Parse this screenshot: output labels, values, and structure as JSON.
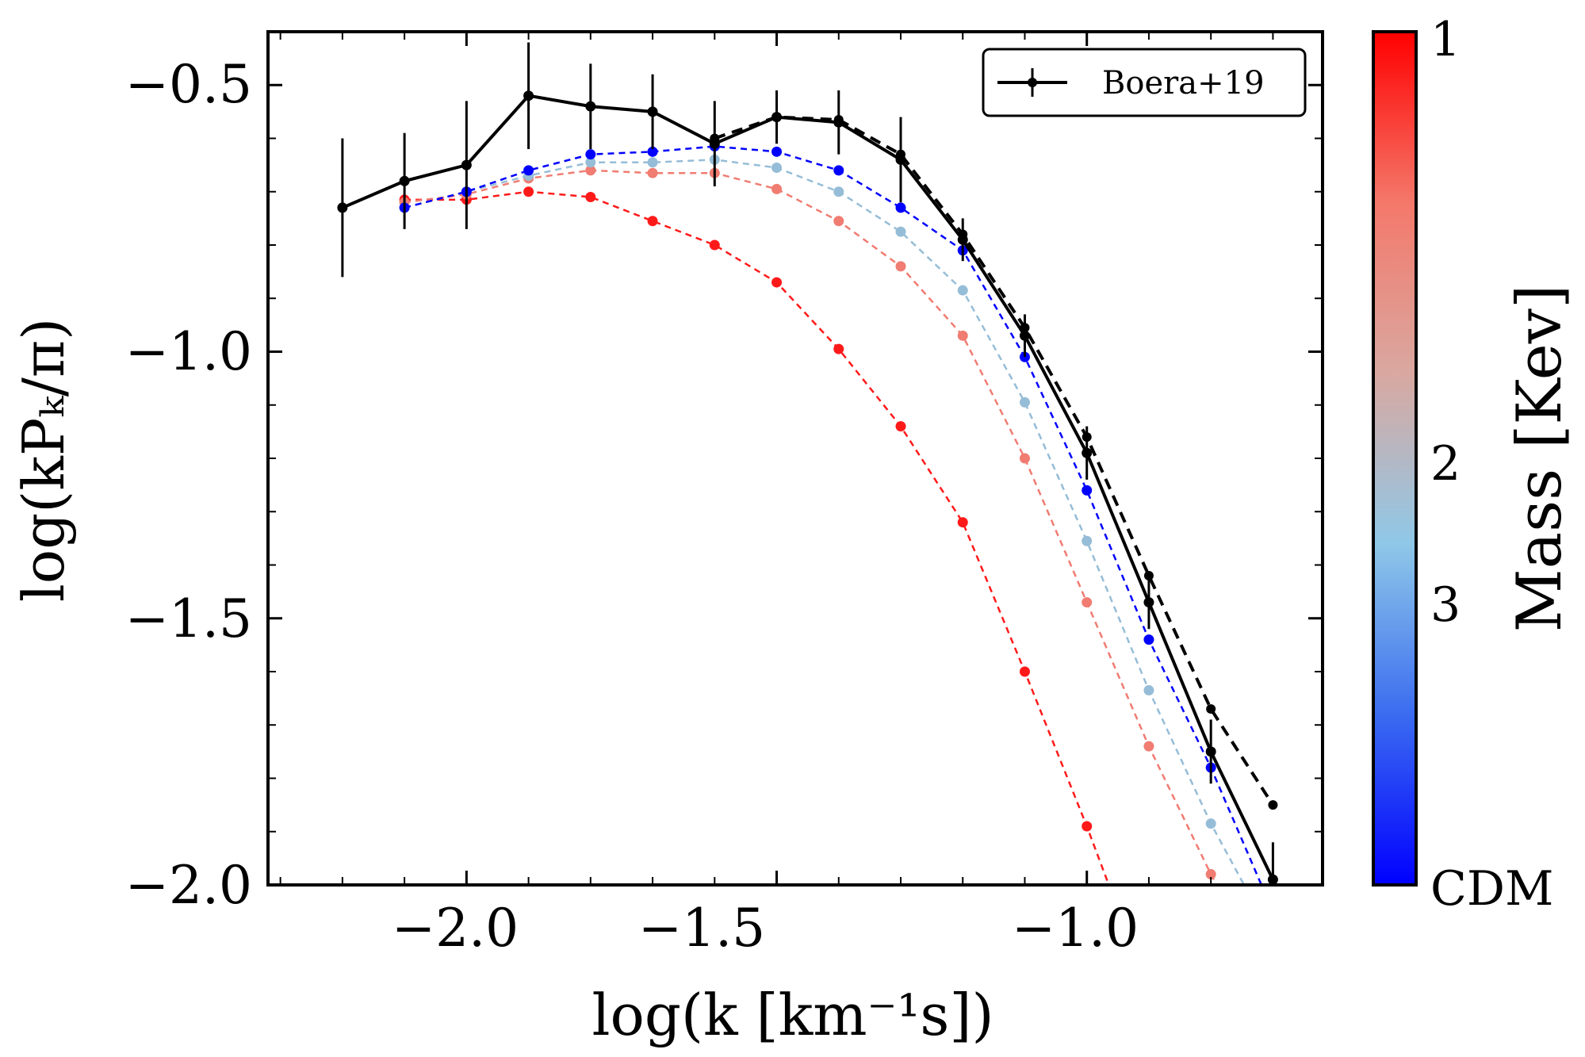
{
  "chart_data": {
    "type": "line",
    "xlabel": "log(k [km⁻¹s])",
    "ylabel": "log(kPₖ/π)",
    "xlim": [
      -2.32,
      -0.62
    ],
    "ylim": [
      -2.0,
      -0.4
    ],
    "xticks": [
      -2.0,
      -1.5,
      -1.0
    ],
    "xtick_labels": [
      "−2.0",
      "−1.5",
      "−1.0"
    ],
    "yticks": [
      -0.5,
      -1.0,
      -1.5,
      -2.0
    ],
    "ytick_labels": [
      "−0.5",
      "−1.0",
      "−1.5",
      "−2.0"
    ],
    "grid": false,
    "legend": {
      "position": "top-right",
      "entries": [
        "Boera+19"
      ]
    },
    "colorbar": {
      "label": "Mass [Kev]",
      "tick_labels": [
        "1",
        "2",
        "3",
        "CDM"
      ],
      "colors": [
        "#ff0000",
        "#f4786a",
        "#d9a8a0",
        "#8fc8e8",
        "#3b6cf0",
        "#0000ff"
      ]
    },
    "observed": {
      "name": "Boera+19",
      "color": "#000000",
      "x": [
        -2.2,
        -2.1,
        -2.0,
        -1.9,
        -1.8,
        -1.7,
        -1.6,
        -1.5,
        -1.4,
        -1.3,
        -1.2,
        -1.1,
        -1.0,
        -0.9,
        -0.8,
        -0.7
      ],
      "y": [
        -0.73,
        -0.68,
        -0.65,
        -0.52,
        -0.54,
        -0.55,
        -0.61,
        -0.56,
        -0.57,
        -0.64,
        -0.79,
        -0.97,
        -1.19,
        -1.47,
        -1.75,
        -1.99
      ],
      "yerr": [
        0.13,
        0.09,
        0.12,
        0.1,
        0.08,
        0.07,
        0.08,
        0.05,
        0.06,
        0.08,
        0.04,
        0.04,
        0.05,
        0.05,
        0.06,
        0.07
      ]
    },
    "series": [
      {
        "color": "#000000",
        "x": [
          -1.6,
          -1.5,
          -1.4,
          -1.3,
          -1.2,
          -1.1,
          -1.0,
          -0.9,
          -0.8,
          -0.7
        ],
        "y": [
          -0.6,
          -0.56,
          -0.565,
          -0.63,
          -0.78,
          -0.955,
          -1.16,
          -1.42,
          -1.67,
          -1.85
        ]
      },
      {
        "color": "#0000ff",
        "x": [
          -2.1,
          -2.0,
          -1.9,
          -1.8,
          -1.7,
          -1.6,
          -1.5,
          -1.4,
          -1.3,
          -1.2,
          -1.1,
          -1.0,
          -0.9,
          -0.8,
          -0.7
        ],
        "y": [
          -0.73,
          -0.7,
          -0.66,
          -0.63,
          -0.625,
          -0.615,
          -0.625,
          -0.66,
          -0.73,
          -0.81,
          -1.01,
          -1.26,
          -1.54,
          -1.78,
          -2.05
        ]
      },
      {
        "color": "#96bdd7",
        "x": [
          -2.1,
          -2.0,
          -1.9,
          -1.8,
          -1.7,
          -1.6,
          -1.5,
          -1.4,
          -1.3,
          -1.2,
          -1.1,
          -1.0,
          -0.9,
          -0.8,
          -0.7
        ],
        "y": [
          -0.73,
          -0.7,
          -0.67,
          -0.645,
          -0.645,
          -0.64,
          -0.655,
          -0.7,
          -0.775,
          -0.885,
          -1.095,
          -1.355,
          -1.635,
          -1.885,
          -2.1
        ]
      },
      {
        "color": "#f07c72",
        "x": [
          -2.1,
          -2.0,
          -1.9,
          -1.8,
          -1.7,
          -1.6,
          -1.5,
          -1.4,
          -1.3,
          -1.2,
          -1.1,
          -1.0,
          -0.9,
          -0.8,
          -0.7
        ],
        "y": [
          -0.72,
          -0.705,
          -0.675,
          -0.66,
          -0.665,
          -0.665,
          -0.695,
          -0.755,
          -0.84,
          -0.97,
          -1.2,
          -1.47,
          -1.74,
          -1.98,
          -2.2
        ]
      },
      {
        "color": "#ff1a1a",
        "x": [
          -2.1,
          -2.0,
          -1.9,
          -1.8,
          -1.7,
          -1.6,
          -1.5,
          -1.4,
          -1.3,
          -1.2,
          -1.1,
          -1.0,
          -0.9
        ],
        "y": [
          -0.715,
          -0.715,
          -0.7,
          -0.71,
          -0.755,
          -0.8,
          -0.87,
          -0.995,
          -1.14,
          -1.32,
          -1.6,
          -1.89,
          -2.2
        ]
      }
    ]
  }
}
